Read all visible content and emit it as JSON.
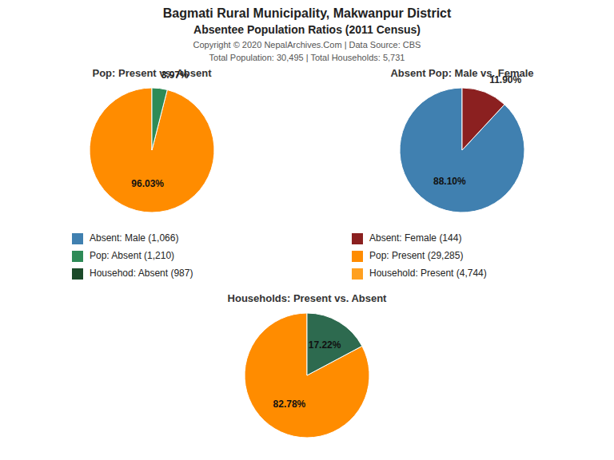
{
  "title": "Bagmati Rural Municipality, Makwanpur District",
  "subtitle": "Absentee Population Ratios (2011 Census)",
  "annotations": [
    "Copyright © 2020 NepalArchives.Com | Data Source: CBS",
    "Total Population: 30,495 | Total Households: 5,731"
  ],
  "legend_entries": [
    {
      "label": "Absent: Male (1,066)",
      "color": "#4080B0"
    },
    {
      "label": "Absent: Female (144)",
      "color": "#8B2020"
    },
    {
      "label": "Pop: Absent (1,210)",
      "color": "#2E8B57"
    },
    {
      "label": "Pop: Present (29,285)",
      "color": "#FF8C00"
    },
    {
      "label": "Househod: Absent (987)",
      "color": "#1C4A2A"
    },
    {
      "label": "Household: Present (4,744)",
      "color": "#FFA020"
    }
  ],
  "chart_data": [
    {
      "type": "pie",
      "title": "Pop: Present vs. Absent",
      "values": [
        96.03,
        3.97
      ],
      "value_labels": [
        "96.03%",
        "3.97%"
      ],
      "colors": [
        "#FF8C00",
        "#2E8B57"
      ],
      "data_labels": true
    },
    {
      "type": "pie",
      "title": "Absent Pop: Male vs. Female",
      "values": [
        88.1,
        11.9
      ],
      "value_labels": [
        "88.10%",
        "11.90%"
      ],
      "colors": [
        "#4080B0",
        "#8B2020"
      ],
      "data_labels": true
    },
    {
      "type": "pie",
      "title": "Households: Present vs. Absent",
      "values": [
        82.78,
        17.22
      ],
      "value_labels": [
        "82.78%",
        "17.22%"
      ],
      "colors": [
        "#FF8C00",
        "#2D6A4F"
      ],
      "data_labels": true
    }
  ]
}
